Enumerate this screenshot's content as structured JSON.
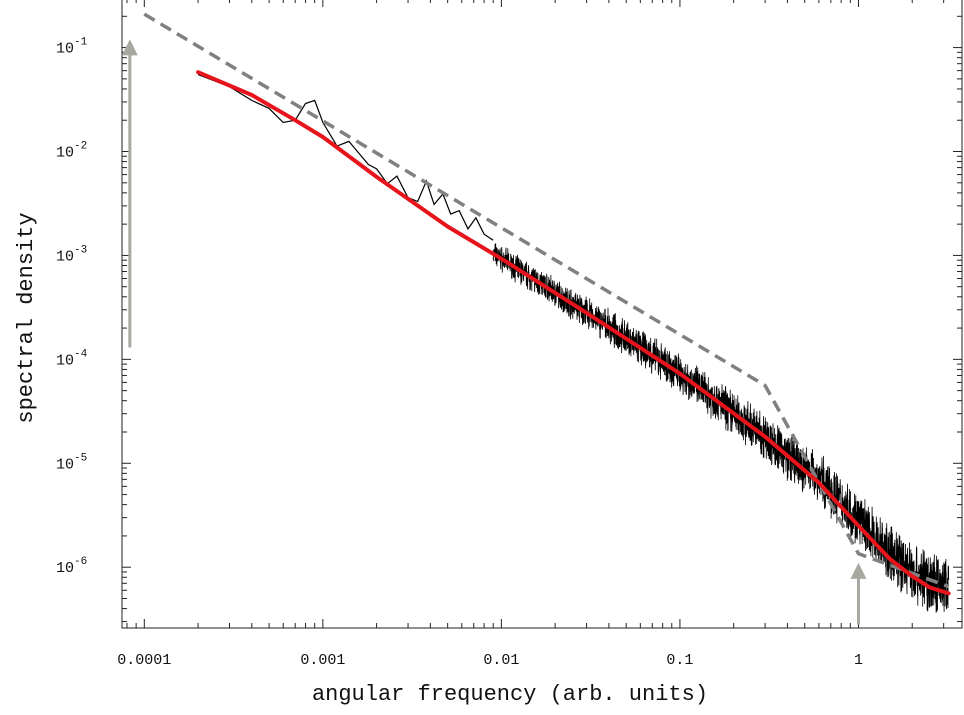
{
  "chart_data": {
    "type": "line",
    "xlabel": "angular frequency (arb. units)",
    "ylabel": "spectral density",
    "xscale": "log",
    "yscale": "log",
    "xlim": [
      7.5e-05,
      3.8
    ],
    "ylim": [
      2.6e-07,
      0.3
    ],
    "x_ticks": [
      {
        "value": 0.0001,
        "label": "0.0001"
      },
      {
        "value": 0.001,
        "label": "0.001"
      },
      {
        "value": 0.01,
        "label": "0.01"
      },
      {
        "value": 0.1,
        "label": "0.1"
      },
      {
        "value": 1,
        "label": "1"
      }
    ],
    "y_ticks": [
      {
        "value": 0.1,
        "base": "10",
        "exp": "-1"
      },
      {
        "value": 0.01,
        "base": "10",
        "exp": "-2"
      },
      {
        "value": 0.001,
        "base": "10",
        "exp": "-3"
      },
      {
        "value": 0.0001,
        "base": "10",
        "exp": "-4"
      },
      {
        "value": 1e-05,
        "base": "10",
        "exp": "-5"
      },
      {
        "value": 1e-06,
        "base": "10",
        "exp": "-6"
      }
    ],
    "series": [
      {
        "style": "noisy-black",
        "color": "#000000",
        "x": [
          0.0002,
          0.0003,
          0.0004,
          0.0005,
          0.0006,
          0.0007,
          0.0008,
          0.0009,
          0.001,
          0.0012,
          0.0014,
          0.0016,
          0.0018,
          0.002,
          0.0023,
          0.0026,
          0.003,
          0.0034,
          0.0038,
          0.0042,
          0.0047,
          0.0052,
          0.0058,
          0.0065,
          0.0072,
          0.008,
          0.009
        ],
        "y": [
          0.055,
          0.042,
          0.031,
          0.026,
          0.019,
          0.02,
          0.029,
          0.031,
          0.019,
          0.0113,
          0.0125,
          0.0095,
          0.0075,
          0.0068,
          0.0049,
          0.0058,
          0.0036,
          0.0033,
          0.0052,
          0.0031,
          0.0039,
          0.0025,
          0.0027,
          0.0018,
          0.0023,
          0.0016,
          0.0014
        ]
      },
      {
        "style": "power-law-dashed",
        "color": "#808080",
        "x": [
          0.0001,
          0.3,
          1,
          3.2
        ],
        "y": [
          0.21,
          5.6e-05,
          1.35e-06,
          6.5e-07
        ]
      },
      {
        "style": "fit-red",
        "color": "#e8141c",
        "x": [
          0.0002,
          0.0004,
          0.0007,
          0.001,
          0.002,
          0.005,
          0.01,
          0.03,
          0.1,
          0.3,
          0.6,
          1,
          1.5,
          2,
          2.5,
          3.2
        ],
        "y": [
          0.058,
          0.035,
          0.02,
          0.0138,
          0.0057,
          0.0019,
          0.00093,
          0.00028,
          7.3e-05,
          1.8e-05,
          6.5e-06,
          2.5e-06,
          1.2e-06,
          8.2e-07,
          6.4e-07,
          5.6e-07
        ]
      }
    ],
    "annotations": [
      {
        "type": "arrow",
        "color": "#a8a8a0",
        "direction": "up",
        "x": 8.3e-05,
        "y_from": 0.00013,
        "y_to": 0.12
      },
      {
        "type": "arrow",
        "color": "#a8a8a0",
        "direction": "up",
        "x": 1,
        "y_from": 2.8e-07,
        "y_to": 1.1e-06
      }
    ],
    "grid": false,
    "legend": "none"
  }
}
